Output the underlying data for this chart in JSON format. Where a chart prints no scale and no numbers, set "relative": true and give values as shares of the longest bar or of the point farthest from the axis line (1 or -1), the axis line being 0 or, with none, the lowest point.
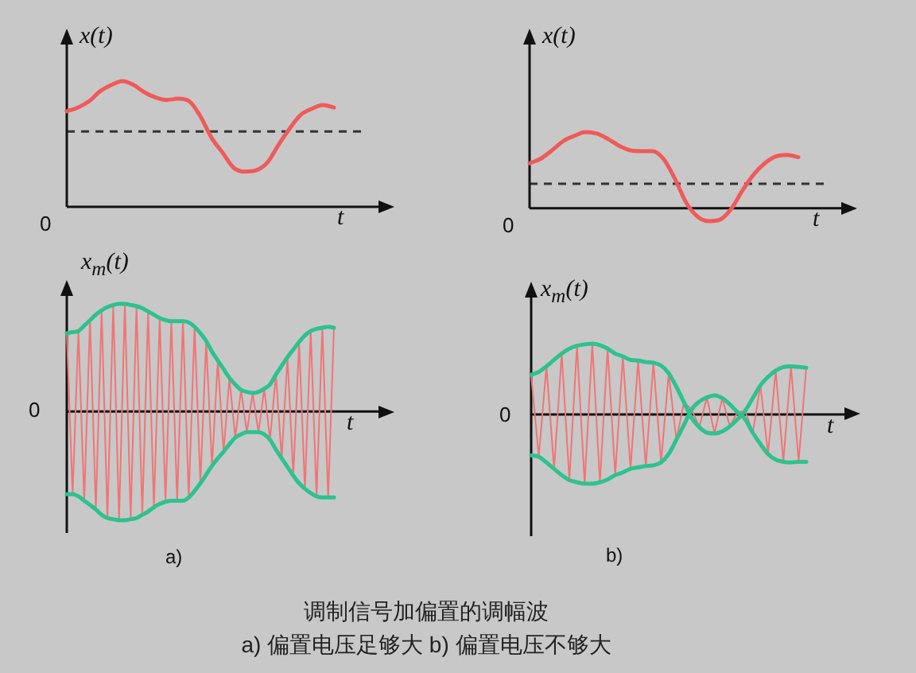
{
  "chart_data": [
    {
      "type": "line",
      "relative": true,
      "ylabel": "x(t)",
      "xlabel": "t",
      "categories": [
        null,
        null,
        null,
        null,
        null,
        null,
        null,
        null,
        null,
        null,
        null,
        null,
        null,
        null,
        null,
        null,
        null,
        null,
        null,
        null,
        null,
        null,
        null,
        null,
        null
      ],
      "series": [
        {
          "color": "#f05a5a",
          "values": [
            0.76,
            0.79,
            0.84,
            0.92,
            0.97,
            1.0,
            0.97,
            0.91,
            0.87,
            0.85,
            0.86,
            0.84,
            0.72,
            0.55,
            0.43,
            0.31,
            0.28,
            0.29,
            0.35,
            0.49,
            0.62,
            0.73,
            0.78,
            0.81,
            0.79
          ]
        }
      ],
      "ref_lines": [
        {
          "axis": "y",
          "value": 0.6,
          "color": "#333333",
          "line_style": "dashed"
        }
      ],
      "annotations": [
        "0"
      ]
    },
    {
      "type": "line",
      "relative": true,
      "ylabel": "x(t)",
      "xlabel": "t",
      "categories": [
        null,
        null,
        null,
        null,
        null,
        null,
        null,
        null,
        null,
        null,
        null,
        null,
        null,
        null,
        null,
        null,
        null,
        null,
        null,
        null,
        null,
        null,
        null,
        null,
        null
      ],
      "series": [
        {
          "color": "#f05a5a",
          "values": [
            0.59,
            0.65,
            0.76,
            0.88,
            0.95,
            1.0,
            0.98,
            0.91,
            0.82,
            0.76,
            0.75,
            0.75,
            0.64,
            0.38,
            0.07,
            -0.11,
            -0.17,
            -0.15,
            -0.01,
            0.23,
            0.44,
            0.59,
            0.68,
            0.7,
            0.67
          ]
        }
      ],
      "ref_lines": [
        {
          "axis": "y",
          "value": 0.32,
          "color": "#333333",
          "line_style": "dashed"
        }
      ],
      "annotations": [
        "0"
      ]
    },
    {
      "type": "line",
      "relative": true,
      "ylabel": "x$_{m}$(t)",
      "xlabel": "t",
      "categories": [
        null,
        null,
        null,
        null,
        null,
        null,
        null,
        null,
        null,
        null,
        null,
        null,
        null,
        null,
        null,
        null,
        null,
        null,
        null,
        null,
        null,
        null,
        null,
        null,
        null,
        null,
        null,
        null,
        null,
        null,
        null,
        null,
        null,
        null,
        null,
        null,
        null,
        null,
        null,
        null,
        null,
        null,
        null,
        null,
        null,
        null,
        null
      ],
      "series": [
        {
          "color": "#2dc28e",
          "values": [
            0.72,
            0.73,
            0.74,
            0.79,
            0.84,
            0.89,
            0.93,
            0.96,
            0.98,
            0.99,
            0.99,
            0.98,
            0.97,
            0.95,
            0.92,
            0.89,
            0.86,
            0.84,
            0.83,
            0.83,
            0.83,
            0.82,
            0.78,
            0.72,
            0.65,
            0.55,
            0.47,
            0.39,
            0.31,
            0.25,
            0.2,
            0.18,
            0.17,
            0.18,
            0.21,
            0.25,
            0.34,
            0.42,
            0.5,
            0.57,
            0.64,
            0.7,
            0.74,
            0.76,
            0.77,
            0.78,
            0.77
          ]
        },
        {
          "color": "#2dc28e",
          "values": [
            -0.76,
            -0.76,
            -0.78,
            -0.82,
            -0.86,
            -0.9,
            -0.95,
            -0.98,
            -0.99,
            -1.0,
            -1.0,
            -0.99,
            -0.98,
            -0.95,
            -0.92,
            -0.88,
            -0.85,
            -0.83,
            -0.82,
            -0.82,
            -0.82,
            -0.79,
            -0.73,
            -0.66,
            -0.58,
            -0.5,
            -0.43,
            -0.37,
            -0.3,
            -0.24,
            -0.21,
            -0.19,
            -0.19,
            -0.19,
            -0.21,
            -0.26,
            -0.35,
            -0.43,
            -0.51,
            -0.59,
            -0.66,
            -0.71,
            -0.75,
            -0.78,
            -0.79,
            -0.79,
            -0.79
          ]
        },
        {
          "color": "#f27474",
          "values": [
            0.72,
            -0.76,
            0.74,
            -0.82,
            0.84,
            -0.9,
            0.93,
            -0.98,
            0.98,
            -1.0,
            0.99,
            -0.99,
            0.97,
            -0.95,
            0.92,
            -0.88,
            0.86,
            -0.83,
            0.83,
            -0.82,
            0.83,
            -0.79,
            0.78,
            -0.66,
            0.65,
            -0.5,
            0.47,
            -0.37,
            0.31,
            -0.24,
            0.2,
            -0.19,
            0.17,
            -0.19,
            0.21,
            -0.26,
            0.34,
            -0.43,
            0.5,
            -0.59,
            0.64,
            -0.71,
            0.74,
            -0.78,
            0.77,
            -0.79,
            0.77
          ]
        }
      ],
      "annotations": [
        "0",
        "a)"
      ]
    },
    {
      "type": "line",
      "relative": true,
      "ylabel": "x$_{m}$(t)",
      "xlabel": "t",
      "categories": [
        null,
        null,
        null,
        null,
        null,
        null,
        null,
        null,
        null,
        null,
        null,
        null,
        null,
        null,
        null,
        null,
        null,
        null,
        null,
        null,
        null,
        null,
        null,
        null,
        null,
        null,
        null,
        null,
        null,
        null,
        null,
        null,
        null,
        null,
        null,
        null,
        null
      ],
      "series": [
        {
          "color": "#2dc28e",
          "values": [
            0.56,
            0.6,
            0.68,
            0.77,
            0.86,
            0.93,
            0.97,
            0.99,
            1.0,
            0.98,
            0.93,
            0.86,
            0.82,
            0.77,
            0.76,
            0.74,
            0.73,
            0.69,
            0.58,
            0.39,
            0.17,
            -0.05,
            -0.18,
            -0.26,
            -0.27,
            -0.24,
            -0.17,
            -0.07,
            0.05,
            0.23,
            0.41,
            0.53,
            0.62,
            0.67,
            0.68,
            0.67,
            0.66
          ]
        },
        {
          "color": "#2dc28e",
          "values": [
            -0.58,
            -0.6,
            -0.68,
            -0.77,
            -0.86,
            -0.93,
            -0.96,
            -0.98,
            -0.98,
            -0.96,
            -0.92,
            -0.86,
            -0.82,
            -0.77,
            -0.75,
            -0.73,
            -0.72,
            -0.68,
            -0.56,
            -0.36,
            -0.15,
            0.07,
            0.18,
            0.24,
            0.27,
            0.23,
            0.14,
            0.03,
            -0.07,
            -0.26,
            -0.42,
            -0.56,
            -0.64,
            -0.67,
            -0.68,
            -0.67,
            -0.67
          ]
        },
        {
          "color": "#f27474",
          "values": [
            0.56,
            -0.6,
            0.68,
            -0.77,
            0.86,
            -0.93,
            0.97,
            -0.98,
            1.0,
            -0.96,
            0.93,
            -0.86,
            0.82,
            -0.77,
            0.76,
            -0.73,
            0.73,
            -0.68,
            0.58,
            -0.36,
            0.17,
            0.07,
            -0.18,
            0.24,
            -0.27,
            0.23,
            -0.17,
            0.03,
            0.05,
            -0.26,
            0.41,
            -0.56,
            0.62,
            -0.67,
            0.68,
            -0.67,
            0.66
          ]
        }
      ],
      "annotations": [
        "0",
        "b)"
      ]
    },
    {
      "type": "other",
      "title": "调制信号加偏置的调幅波",
      "annotations": [
        "a) 偏置电压足够大 b) 偏置电压不够大"
      ]
    }
  ]
}
